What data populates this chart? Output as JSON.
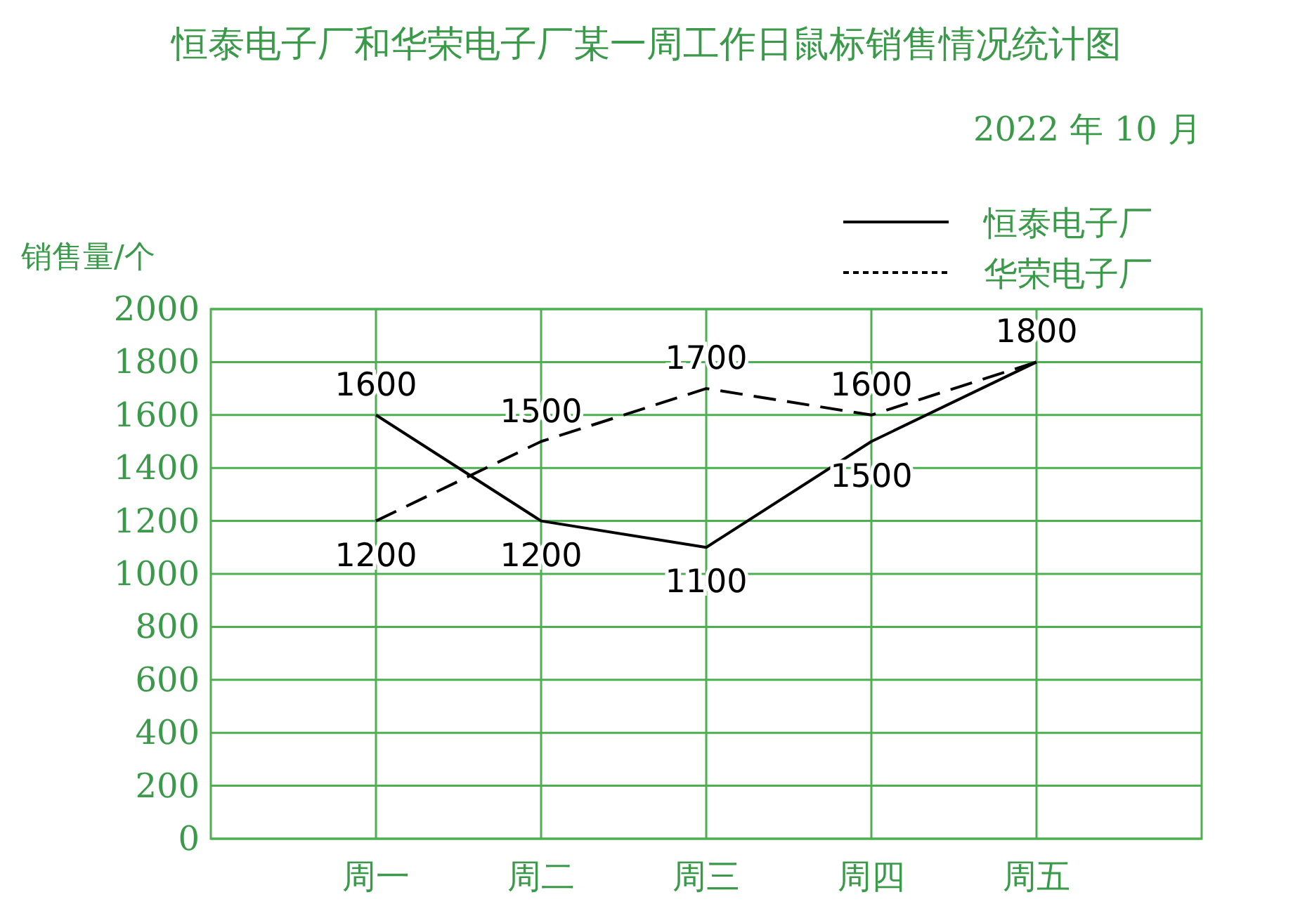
{
  "chart_data": {
    "type": "line",
    "title": "恒泰电子厂和华荣电子厂某一周工作日鼠标销售情况统计图",
    "subtitle": "2022 年 10 月",
    "ylabel": "销售量/个",
    "categories": [
      "周一",
      "周二",
      "周三",
      "周四",
      "周五"
    ],
    "series": [
      {
        "name": "恒泰电子厂",
        "color": "#000000",
        "line_style": "solid",
        "values": [
          1600,
          1200,
          1100,
          1500,
          1800
        ],
        "value_labels": [
          "1600",
          "1200",
          "1100",
          "1500",
          "1800"
        ]
      },
      {
        "name": "华荣电子厂",
        "color": "#000000",
        "line_style": "dashed",
        "values": [
          1200,
          1500,
          1700,
          1600,
          1800
        ],
        "value_labels": [
          "1200",
          "1500",
          "1700",
          "1600",
          null
        ]
      }
    ],
    "ylim": [
      0,
      2000
    ],
    "yticks": [
      0,
      200,
      400,
      600,
      800,
      1000,
      1200,
      1400,
      1600,
      1800,
      2000
    ],
    "grid": true,
    "legend": "top right"
  }
}
